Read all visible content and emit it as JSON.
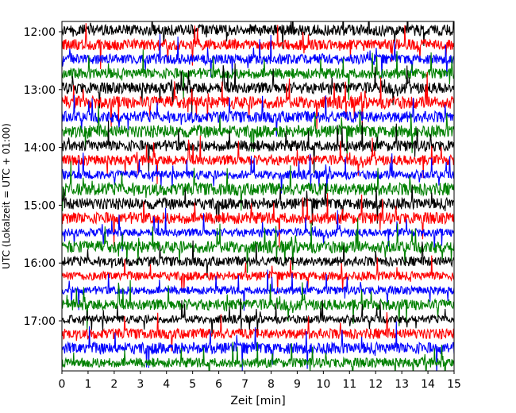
{
  "chart_data": {
    "type": "line",
    "title": "",
    "xlabel": "Zeit  [min]",
    "ylabel": "UTC (Lokalzeit = UTC + 01:00)",
    "xlim": [
      0,
      15
    ],
    "x_ticks": [
      0,
      1,
      2,
      3,
      4,
      5,
      6,
      7,
      8,
      9,
      10,
      11,
      12,
      13,
      14,
      15
    ],
    "y_tick_labels": [
      "12:00",
      "13:00",
      "14:00",
      "15:00",
      "16:00",
      "17:00"
    ],
    "trace_colors_cycle": [
      "#000000",
      "#ff0000",
      "#0000ff",
      "#008000"
    ],
    "trace_count": 24,
    "trace_start": "12:00",
    "trace_interval_min": 15,
    "grid": false,
    "legend": "none"
  }
}
